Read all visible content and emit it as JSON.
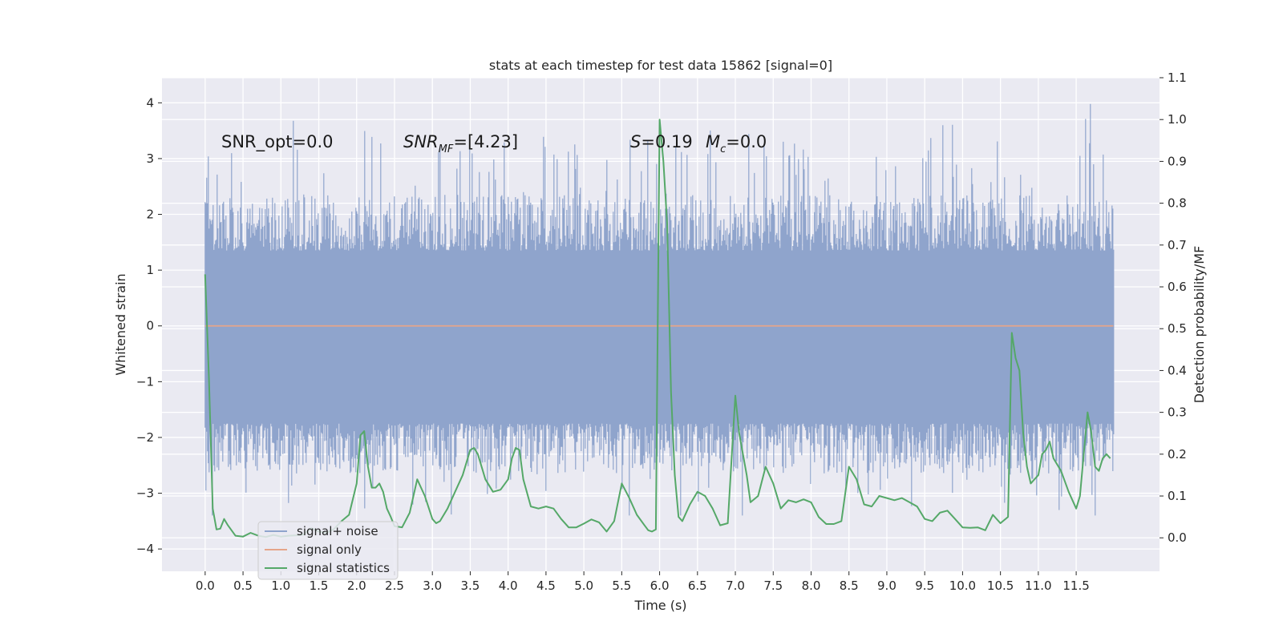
{
  "chart_data": {
    "type": "line",
    "title": "stats at each timestep for test data 15862 [signal=0]",
    "xlabel": "Time (s)",
    "ylabel_left": "Whitened strain",
    "ylabel_right": "Detection probability/MF",
    "xlim": [
      -0.57,
      12.6
    ],
    "ylim_left": [
      -4.4,
      4.45
    ],
    "ylim_right": [
      -0.08,
      1.1
    ],
    "x_ticks": [
      0.0,
      0.5,
      1.0,
      1.5,
      2.0,
      2.5,
      3.0,
      3.5,
      4.0,
      4.5,
      5.0,
      5.5,
      6.0,
      6.5,
      7.0,
      7.5,
      8.0,
      8.5,
      9.0,
      9.5,
      10.0,
      10.5,
      11.0,
      11.5
    ],
    "x_tick_labels": [
      "0.0",
      "0.5",
      "1.0",
      "1.5",
      "2.0",
      "2.5",
      "3.0",
      "3.5",
      "4.0",
      "4.5",
      "5.0",
      "5.5",
      "6.0",
      "6.5",
      "7.0",
      "7.5",
      "8.0",
      "8.5",
      "9.0",
      "9.5",
      "10.0",
      "10.5",
      "11.0",
      "11.5"
    ],
    "y_ticks_left": [
      -4,
      -3,
      -2,
      -1,
      0,
      1,
      2,
      3,
      4
    ],
    "y_tick_labels_left": [
      "−4",
      "−3",
      "−2",
      "−1",
      "0",
      "1",
      "2",
      "3",
      "4"
    ],
    "y_ticks_right": [
      0.0,
      0.1,
      0.2,
      0.3,
      0.4,
      0.5,
      0.6,
      0.7,
      0.8,
      0.9,
      1.0,
      1.1
    ],
    "y_tick_labels_right": [
      "0.0",
      "0.1",
      "0.2",
      "0.3",
      "0.4",
      "0.5",
      "0.6",
      "0.7",
      "0.8",
      "0.9",
      "1.0",
      "1.1"
    ],
    "grid": true,
    "legend_position": "lower-left",
    "legend": [
      {
        "label": "signal+ noise",
        "color": "#8fa4cc"
      },
      {
        "label": "signal only",
        "color": "#e5a58a"
      },
      {
        "label": "signal statistics",
        "color": "#55a868"
      }
    ],
    "annotations": {
      "snr_opt": "SNR_opt=0.0",
      "snr_mf_base": "SNR",
      "snr_mf_sub": "MF",
      "snr_mf_value": "=[4.23]",
      "s_base": "S",
      "s_value": "=0.19",
      "mc_base": "M",
      "mc_sub": "c",
      "mc_value": "=0.0"
    },
    "noise_series": {
      "name": "signal+ noise",
      "color": "#8fa4cc",
      "x_range": [
        0.0,
        11.99
      ],
      "core_band": [
        -1.75,
        1.35
      ],
      "extreme_range": [
        -3.4,
        4.1
      ]
    },
    "signal_series": {
      "name": "signal only",
      "color": "#e5a58a",
      "x": [
        0.0,
        11.99
      ],
      "y": [
        0.0,
        0.0
      ]
    },
    "statistic_series": {
      "name": "signal statistics",
      "color": "#55a868",
      "x": [
        0.0,
        0.05,
        0.1,
        0.15,
        0.2,
        0.25,
        0.3,
        0.4,
        0.5,
        0.6,
        0.7,
        0.8,
        0.9,
        1.0,
        1.1,
        1.2,
        1.3,
        1.4,
        1.5,
        1.6,
        1.7,
        1.8,
        1.9,
        2.0,
        2.05,
        2.1,
        2.15,
        2.2,
        2.25,
        2.3,
        2.35,
        2.4,
        2.45,
        2.5,
        2.6,
        2.7,
        2.8,
        2.9,
        3.0,
        3.05,
        3.1,
        3.2,
        3.3,
        3.4,
        3.5,
        3.55,
        3.6,
        3.7,
        3.8,
        3.9,
        4.0,
        4.05,
        4.1,
        4.15,
        4.2,
        4.3,
        4.4,
        4.5,
        4.6,
        4.7,
        4.8,
        4.9,
        5.0,
        5.1,
        5.2,
        5.3,
        5.4,
        5.5,
        5.6,
        5.7,
        5.8,
        5.85,
        5.9,
        5.95,
        6.0,
        6.05,
        6.1,
        6.15,
        6.2,
        6.25,
        6.3,
        6.4,
        6.5,
        6.6,
        6.7,
        6.8,
        6.9,
        7.0,
        7.05,
        7.1,
        7.15,
        7.2,
        7.3,
        7.4,
        7.5,
        7.6,
        7.7,
        7.8,
        7.9,
        8.0,
        8.1,
        8.2,
        8.3,
        8.4,
        8.5,
        8.6,
        8.7,
        8.8,
        8.9,
        9.0,
        9.1,
        9.2,
        9.3,
        9.4,
        9.5,
        9.6,
        9.7,
        9.8,
        9.9,
        10.0,
        10.1,
        10.2,
        10.3,
        10.4,
        10.5,
        10.6,
        10.65,
        10.7,
        10.75,
        10.8,
        10.85,
        10.9,
        10.95,
        11.0,
        11.05,
        11.1,
        11.15,
        11.2,
        11.3,
        11.4,
        11.5,
        11.55,
        11.6,
        11.65,
        11.7,
        11.75,
        11.8,
        11.85,
        11.9,
        11.95
      ],
      "y": [
        0.63,
        0.38,
        0.07,
        0.02,
        0.022,
        0.045,
        0.03,
        0.005,
        0.003,
        0.012,
        0.005,
        0.002,
        0.007,
        0.003,
        0.005,
        0.006,
        0.008,
        0.023,
        0.015,
        0.012,
        0.021,
        0.04,
        0.055,
        0.13,
        0.245,
        0.255,
        0.17,
        0.12,
        0.12,
        0.13,
        0.11,
        0.07,
        0.05,
        0.028,
        0.025,
        0.06,
        0.14,
        0.1,
        0.045,
        0.035,
        0.04,
        0.07,
        0.11,
        0.15,
        0.21,
        0.215,
        0.2,
        0.14,
        0.11,
        0.115,
        0.14,
        0.19,
        0.215,
        0.21,
        0.14,
        0.075,
        0.07,
        0.075,
        0.07,
        0.045,
        0.025,
        0.025,
        0.034,
        0.044,
        0.037,
        0.015,
        0.04,
        0.13,
        0.095,
        0.055,
        0.03,
        0.018,
        0.015,
        0.02,
        1.0,
        0.9,
        0.75,
        0.35,
        0.15,
        0.05,
        0.04,
        0.08,
        0.11,
        0.1,
        0.07,
        0.03,
        0.035,
        0.34,
        0.25,
        0.2,
        0.15,
        0.085,
        0.1,
        0.17,
        0.13,
        0.07,
        0.09,
        0.085,
        0.092,
        0.085,
        0.05,
        0.033,
        0.033,
        0.04,
        0.17,
        0.14,
        0.08,
        0.075,
        0.1,
        0.095,
        0.09,
        0.095,
        0.085,
        0.075,
        0.045,
        0.04,
        0.06,
        0.065,
        0.045,
        0.025,
        0.024,
        0.025,
        0.018,
        0.055,
        0.035,
        0.05,
        0.49,
        0.43,
        0.4,
        0.25,
        0.17,
        0.13,
        0.14,
        0.15,
        0.2,
        0.21,
        0.23,
        0.19,
        0.16,
        0.11,
        0.07,
        0.1,
        0.2,
        0.3,
        0.25,
        0.17,
        0.16,
        0.19,
        0.2,
        0.19
      ]
    }
  }
}
